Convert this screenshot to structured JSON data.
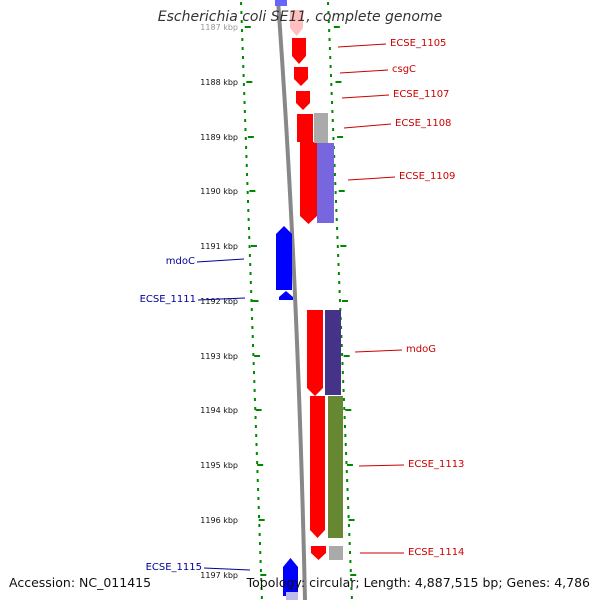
{
  "title": "Escherichia coli SE11, complete genome",
  "footer": {
    "accession": "Accession: NC_011415",
    "topology": "Topology: circular; Length: 4,887,515 bp; Genes: 4,786"
  },
  "colors": {
    "forward_gene": "#ff0000",
    "reverse_gene": "#0000ff",
    "forward_label": "#cc0000",
    "reverse_label": "#000099",
    "tick": "#008800",
    "backbone": "#888888"
  },
  "ticks": [
    {
      "label": "1187 kbp"
    },
    {
      "label": "1188 kbp"
    },
    {
      "label": "1189 kbp"
    },
    {
      "label": "1190 kbp"
    },
    {
      "label": "1191 kbp"
    },
    {
      "label": "1192 kbp"
    },
    {
      "label": "1193 kbp"
    },
    {
      "label": "1194 kbp"
    },
    {
      "label": "1195 kbp"
    },
    {
      "label": "1196 kbp"
    },
    {
      "label": "1197 kbp"
    }
  ],
  "genes": [
    {
      "name": "ECSE_1105",
      "strand": "forward"
    },
    {
      "name": "csgC",
      "strand": "forward"
    },
    {
      "name": "ECSE_1107",
      "strand": "forward"
    },
    {
      "name": "ECSE_1108",
      "strand": "forward"
    },
    {
      "name": "ECSE_1109",
      "strand": "forward"
    },
    {
      "name": "mdoC",
      "strand": "reverse"
    },
    {
      "name": "ECSE_1111",
      "strand": "reverse"
    },
    {
      "name": "mdoG",
      "strand": "forward"
    },
    {
      "name": "ECSE_1113",
      "strand": "forward"
    },
    {
      "name": "ECSE_1114",
      "strand": "forward"
    },
    {
      "name": "ECSE_1115",
      "strand": "reverse"
    }
  ]
}
